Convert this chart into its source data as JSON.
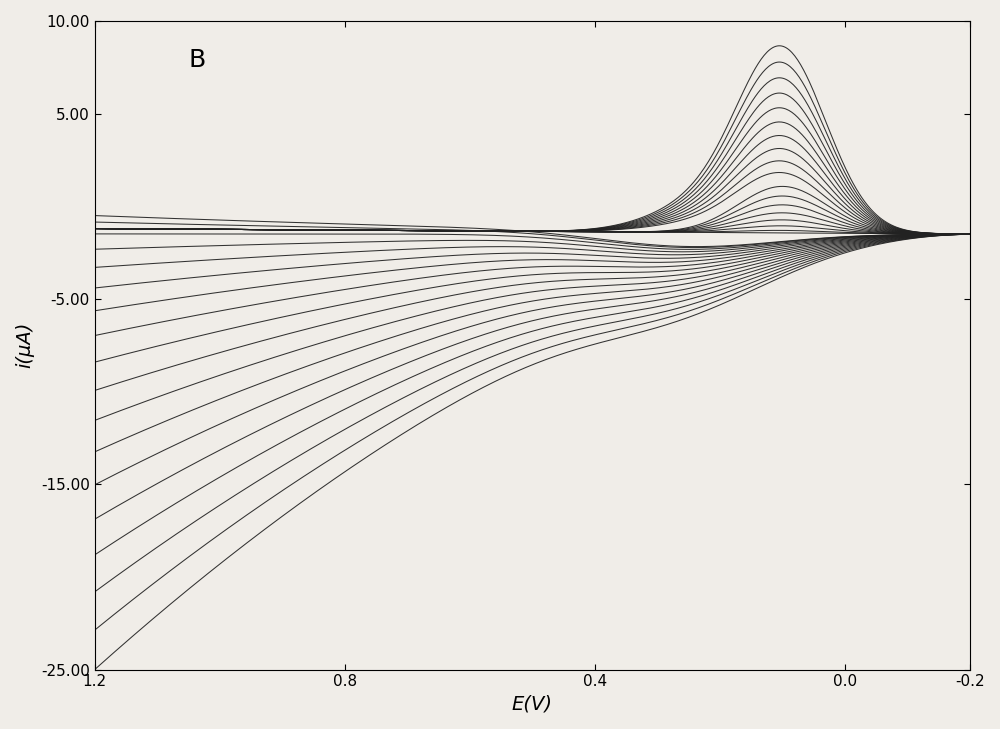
{
  "title_label": "B",
  "xlabel": "E(V)",
  "ylabel": "i(μA)",
  "xlim": [
    1.2,
    -0.2
  ],
  "ylim": [
    -25.0,
    10.0
  ],
  "xticks": [
    1.2,
    0.8,
    0.4,
    0.0,
    -0.2
  ],
  "yticks": [
    -25.0,
    -15.0,
    -5.0,
    5.0,
    10.0
  ],
  "line_color": "#222222",
  "background_color": "#f0ede8",
  "num_curves": 18,
  "figsize": [
    10.0,
    7.29
  ],
  "dpi": 100
}
